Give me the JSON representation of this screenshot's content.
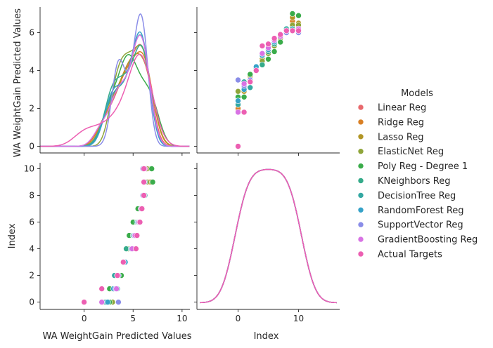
{
  "chart_data": {
    "type": "scatter",
    "subtype": "pairplot",
    "variables": [
      "WA WeightGain Predicted Values",
      "Index"
    ],
    "legend": {
      "title": "Models",
      "placement": "right",
      "entries": [
        "Linear Reg",
        "Ridge Reg",
        "Lasso Reg",
        "ElasticNet Reg",
        "Poly Reg - Degree 1",
        "KNeighbors Reg",
        "DecisionTree Reg",
        "RandomForest Reg",
        "SupportVector Reg",
        "GradientBoosting Reg",
        "Actual Targets"
      ]
    },
    "colors": [
      "#e8696d",
      "#d98025",
      "#b29626",
      "#8fa53a",
      "#3aac4a",
      "#35ab8a",
      "#34a8a2",
      "#36a2c8",
      "#8a8de8",
      "#d873e4",
      "#ec5fb2"
    ],
    "axes": {
      "pred_ticks": [
        0,
        2,
        4,
        6
      ],
      "pred_tick_labels": [
        "0",
        "2",
        "4",
        "6"
      ],
      "index_ticks": [
        0,
        2,
        4,
        6,
        8,
        10
      ],
      "index_tick_labels": [
        "0",
        "2",
        "4",
        "6",
        "8",
        "10"
      ],
      "pred_xticks": [
        0,
        5,
        10
      ],
      "pred_xtick_labels": [
        "0",
        "5",
        "10"
      ],
      "index_xticks": [
        0,
        10
      ],
      "index_xtick_labels": [
        "0",
        "10"
      ],
      "pred_label": "WA WeightGain Predicted Values",
      "index_label": "Index",
      "pred_xlim": [
        -4.5,
        10.8
      ],
      "pred_ylim": [
        -0.35,
        7.35
      ],
      "index_xlim": [
        -6.8,
        16.8
      ],
      "index_ylim": [
        -0.55,
        10.45
      ],
      "kde_ylim": [
        -0.5,
        10.5
      ]
    },
    "index": [
      0,
      1,
      2,
      3,
      4,
      5,
      6,
      7,
      8,
      9,
      10
    ],
    "series": [
      {
        "name": "Linear Reg",
        "values": [
          1.9,
          3.0,
          3.7,
          4.2,
          4.6,
          5.0,
          5.5,
          5.9,
          6.1,
          6.3,
          6.3
        ]
      },
      {
        "name": "Ridge Reg",
        "values": [
          2.0,
          3.0,
          3.7,
          4.2,
          4.6,
          5.0,
          5.5,
          5.9,
          6.1,
          6.6,
          6.5
        ]
      },
      {
        "name": "Lasso Reg",
        "values": [
          2.2,
          2.9,
          3.7,
          4.2,
          4.6,
          4.9,
          5.4,
          5.8,
          6.0,
          6.8,
          6.5
        ]
      },
      {
        "name": "ElasticNet Reg",
        "values": [
          2.9,
          3.3,
          3.8,
          4.1,
          4.5,
          4.9,
          5.3,
          5.7,
          6.0,
          6.4,
          6.4
        ]
      },
      {
        "name": "Poly Reg - Degree 1",
        "values": [
          2.6,
          2.6,
          3.8,
          4.2,
          4.3,
          4.6,
          5.0,
          5.5,
          6.1,
          7.0,
          6.9
        ]
      },
      {
        "name": "KNeighbors Reg",
        "values": [
          2.4,
          3.1,
          3.1,
          4.1,
          4.3,
          5.0,
          5.4,
          5.9,
          6.2,
          6.2,
          6.1
        ]
      },
      {
        "name": "DecisionTree Reg",
        "values": [
          2.2,
          3.4,
          3.1,
          4.2,
          4.9,
          5.1,
          5.5,
          5.9,
          6.2,
          6.2,
          6.1
        ]
      },
      {
        "name": "RandomForest Reg",
        "values": [
          2.4,
          3.0,
          3.4,
          4.2,
          4.8,
          5.1,
          5.5,
          5.9,
          6.1,
          6.1,
          6.1
        ]
      },
      {
        "name": "SupportVector Reg",
        "values": [
          3.5,
          3.2,
          3.5,
          4.0,
          4.9,
          5.2,
          5.6,
          5.9,
          6.0,
          6.1,
          6.0
        ]
      },
      {
        "name": "GradientBoosting Reg",
        "values": [
          1.8,
          3.3,
          3.4,
          4.0,
          4.9,
          5.2,
          5.6,
          5.8,
          6.1,
          6.1,
          6.2
        ]
      },
      {
        "name": "Actual Targets",
        "values": [
          0.0,
          1.8,
          3.4,
          4.0,
          5.3,
          5.4,
          5.7,
          5.9,
          6.1,
          6.1,
          6.1
        ]
      }
    ]
  }
}
